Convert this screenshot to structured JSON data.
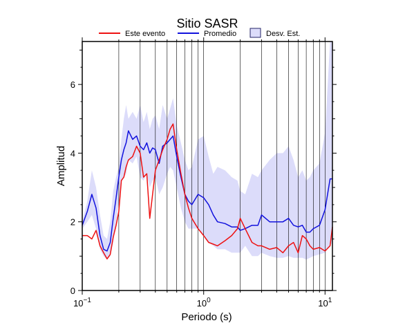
{
  "chart_data": {
    "type": "line",
    "title": "Sitio SASR",
    "xlabel": "Periodo (s)",
    "ylabel": "Amplitud",
    "x_scale": "log",
    "xlim": [
      0.1,
      11.5
    ],
    "ylim": [
      0,
      7.25
    ],
    "x_ticks": [
      0.1,
      1,
      10
    ],
    "x_tick_labels": [
      {
        "base": "10",
        "exp": "−1"
      },
      {
        "base": "10",
        "exp": "0"
      },
      {
        "base": "10",
        "exp": "1"
      }
    ],
    "y_ticks": [
      0,
      2,
      4,
      6
    ],
    "y_tick_labels": [
      "0",
      "2",
      "4",
      "6"
    ],
    "grid": "vertical",
    "legend_position": "top",
    "legend": [
      "Este evento",
      "Promedio",
      "Desv. Est."
    ],
    "colors": {
      "este_evento": "#ee1111",
      "promedio": "#1111dd",
      "desv_fill": "#dcdcfa",
      "desv_border": "#222266"
    },
    "series": [
      {
        "name": "Este evento",
        "x": [
          0.1,
          0.11,
          0.12,
          0.13,
          0.14,
          0.15,
          0.16,
          0.17,
          0.18,
          0.19,
          0.2,
          0.21,
          0.22,
          0.23,
          0.24,
          0.26,
          0.28,
          0.3,
          0.32,
          0.34,
          0.36,
          0.38,
          0.4,
          0.43,
          0.46,
          0.5,
          0.53,
          0.56,
          0.6,
          0.65,
          0.7,
          0.75,
          0.8,
          0.9,
          1.0,
          1.1,
          1.2,
          1.3,
          1.5,
          1.7,
          1.9,
          2.0,
          2.2,
          2.5,
          2.8,
          3.0,
          3.5,
          4.0,
          4.5,
          5.0,
          5.5,
          6.0,
          6.5,
          7.0,
          7.5,
          8.0,
          9.0,
          10.0,
          11.0,
          11.5
        ],
        "y": [
          1.6,
          1.6,
          1.5,
          1.75,
          1.3,
          1.1,
          0.92,
          1.05,
          1.55,
          1.9,
          2.3,
          3.2,
          3.3,
          3.6,
          3.8,
          3.9,
          4.2,
          4.0,
          3.3,
          3.4,
          2.1,
          2.8,
          3.5,
          3.8,
          4.1,
          4.4,
          4.7,
          4.85,
          4.1,
          3.4,
          2.8,
          2.4,
          2.1,
          1.8,
          1.6,
          1.4,
          1.35,
          1.3,
          1.45,
          1.6,
          1.8,
          2.1,
          1.8,
          1.4,
          1.3,
          1.3,
          1.2,
          1.25,
          1.1,
          1.3,
          1.4,
          1.1,
          1.6,
          1.5,
          1.3,
          1.2,
          1.25,
          1.15,
          1.3,
          1.85
        ]
      },
      {
        "name": "Promedio",
        "x": [
          0.1,
          0.11,
          0.12,
          0.13,
          0.14,
          0.15,
          0.16,
          0.17,
          0.18,
          0.19,
          0.2,
          0.21,
          0.22,
          0.23,
          0.24,
          0.26,
          0.28,
          0.3,
          0.32,
          0.34,
          0.36,
          0.38,
          0.4,
          0.43,
          0.46,
          0.5,
          0.53,
          0.56,
          0.6,
          0.65,
          0.7,
          0.75,
          0.8,
          0.9,
          1.0,
          1.1,
          1.2,
          1.3,
          1.5,
          1.7,
          1.9,
          2.0,
          2.2,
          2.5,
          2.8,
          3.0,
          3.5,
          4.0,
          4.5,
          5.0,
          5.5,
          6.0,
          6.5,
          7.0,
          7.5,
          8.0,
          9.0,
          10.0,
          11.0,
          11.5
        ],
        "y": [
          1.9,
          2.3,
          2.8,
          2.4,
          1.6,
          1.2,
          1.15,
          1.4,
          2.1,
          2.7,
          3.3,
          3.8,
          4.1,
          4.3,
          4.65,
          4.4,
          4.5,
          4.2,
          4.1,
          4.3,
          4.0,
          4.15,
          4.1,
          3.7,
          4.2,
          4.3,
          4.4,
          4.5,
          3.9,
          3.3,
          2.8,
          2.6,
          2.5,
          2.8,
          2.7,
          2.5,
          2.2,
          2.0,
          1.95,
          1.85,
          1.85,
          1.75,
          1.8,
          1.9,
          1.9,
          2.2,
          2.0,
          2.0,
          2.0,
          2.1,
          1.9,
          1.85,
          1.9,
          1.7,
          1.7,
          1.8,
          1.9,
          2.35,
          3.25,
          3.25
        ]
      },
      {
        "name": "Desv. Est.",
        "x": [
          0.1,
          0.11,
          0.12,
          0.13,
          0.14,
          0.15,
          0.16,
          0.17,
          0.18,
          0.19,
          0.2,
          0.21,
          0.22,
          0.23,
          0.24,
          0.26,
          0.28,
          0.3,
          0.32,
          0.34,
          0.36,
          0.38,
          0.4,
          0.43,
          0.46,
          0.5,
          0.53,
          0.56,
          0.6,
          0.65,
          0.7,
          0.75,
          0.8,
          0.9,
          1.0,
          1.1,
          1.2,
          1.3,
          1.5,
          1.7,
          1.9,
          2.0,
          2.2,
          2.5,
          2.8,
          3.0,
          3.5,
          4.0,
          4.5,
          5.0,
          5.5,
          6.0,
          6.5,
          7.0,
          7.5,
          8.0,
          9.0,
          10.0,
          11.0,
          11.5
        ],
        "upper": [
          2.0,
          2.6,
          3.5,
          3.0,
          2.2,
          1.6,
          1.5,
          2.0,
          2.9,
          3.3,
          3.6,
          4.4,
          5.0,
          5.4,
          5.0,
          5.2,
          5.0,
          5.4,
          4.9,
          5.2,
          4.7,
          5.0,
          5.1,
          4.7,
          5.4,
          5.0,
          5.3,
          5.6,
          4.8,
          4.3,
          3.8,
          3.5,
          3.6,
          4.4,
          4.5,
          3.9,
          3.4,
          3.6,
          3.5,
          3.3,
          3.2,
          2.9,
          2.8,
          3.4,
          3.3,
          3.5,
          3.8,
          4.0,
          4.0,
          4.2,
          3.8,
          3.3,
          3.5,
          3.2,
          3.3,
          3.5,
          3.7,
          4.6,
          7.25,
          7.25
        ],
        "lower": [
          1.8,
          2.0,
          2.2,
          1.8,
          1.2,
          1.0,
          0.9,
          1.0,
          1.4,
          2.0,
          2.6,
          3.2,
          3.3,
          3.4,
          3.8,
          3.7,
          3.9,
          3.3,
          3.2,
          3.4,
          3.0,
          3.2,
          3.3,
          2.8,
          3.0,
          3.4,
          3.6,
          3.5,
          3.0,
          2.4,
          2.0,
          1.8,
          1.8,
          1.8,
          1.6,
          1.4,
          1.3,
          1.2,
          1.2,
          1.1,
          1.1,
          1.1,
          1.3,
          1.0,
          1.0,
          1.1,
          1.0,
          0.95,
          0.95,
          1.0,
          0.95,
          0.95,
          0.95,
          0.9,
          0.95,
          1.0,
          1.05,
          1.1,
          1.3,
          1.4
        ]
      }
    ]
  }
}
